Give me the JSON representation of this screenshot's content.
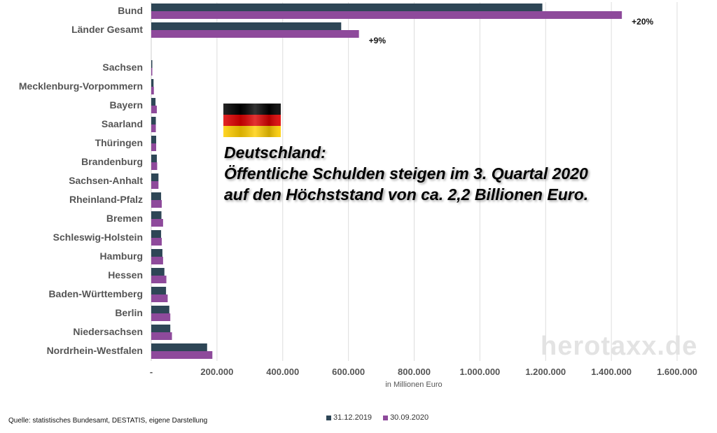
{
  "chart_data": {
    "type": "bar",
    "orientation": "horizontal",
    "categories": [
      "Bund",
      "Länder Gesamt",
      "",
      "Sachsen",
      "Mecklenburg-Vorpommern",
      "Bayern",
      "Saarland",
      "Thüringen",
      "Brandenburg",
      "Sachsen-Anhalt",
      "Rheinland-Pfalz",
      "Bremen",
      "Schleswig-Holstein",
      "Hamburg",
      "Hessen",
      "Baden-Württemberg",
      "Berlin",
      "Niedersachsen",
      "Nordrhein-Westfalen"
    ],
    "series": [
      {
        "name": "31.12.2019",
        "color": "#2e4656",
        "values": [
          1190000,
          578000,
          null,
          1000,
          7000,
          13000,
          14000,
          15000,
          17000,
          22000,
          30000,
          31000,
          30000,
          34000,
          40000,
          45000,
          55000,
          58000,
          170000
        ]
      },
      {
        "name": "30.09.2020",
        "color": "#8e4a9b",
        "values": [
          1432000,
          632000,
          null,
          3000,
          8000,
          17000,
          14000,
          15000,
          18000,
          22000,
          32000,
          36000,
          32000,
          36000,
          46000,
          50000,
          58000,
          63000,
          186000
        ]
      }
    ],
    "annotations": [
      {
        "category": "Bund",
        "text": "+20%"
      },
      {
        "category": "Länder Gesamt",
        "text": "+9%"
      }
    ],
    "xlim": [
      0,
      1600000
    ],
    "xticks": [
      0,
      200000,
      400000,
      600000,
      800000,
      1000000,
      1200000,
      1400000,
      1600000
    ],
    "xtick_labels": [
      "-",
      "200.000",
      "400.000",
      "600.000",
      "800.000",
      "1.000.000",
      "1.200.000",
      "1.400.000",
      "1.600.000"
    ],
    "xlabel": "in Millionen Euro",
    "grid": true,
    "legend_position": "bottom"
  },
  "headline": {
    "line1": "Deutschland:",
    "line2": "Öffentliche Schulden steigen im 3. Quartal 2020",
    "line3": "auf den Höchststand von ca. 2,2 Billionen Euro."
  },
  "watermark": "herotaxx.de",
  "source": "Quelle: statistisches Bundesamt, DESTATIS, eigene Darstellung",
  "flag": {
    "name": "germany-flag",
    "colors": [
      "#000000",
      "#dd0000",
      "#ffce00"
    ]
  }
}
